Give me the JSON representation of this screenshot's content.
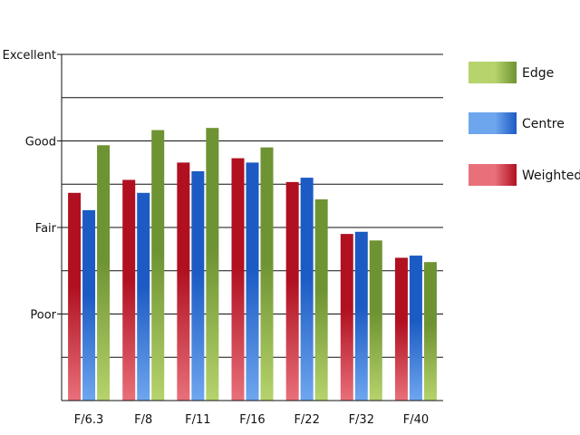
{
  "chart_data": {
    "type": "bar",
    "title": "",
    "xlabel": "",
    "ylabel": "",
    "categories": [
      "F/6.3",
      "F/8",
      "F/11",
      "F/16",
      "F/22",
      "F/32",
      "F/40"
    ],
    "ylim": [
      0,
      8
    ],
    "y_ticks": [
      {
        "value": 2,
        "label": "Poor"
      },
      {
        "value": 4,
        "label": "Fair"
      },
      {
        "value": 6,
        "label": "Good"
      },
      {
        "value": 8,
        "label": "Excellent"
      }
    ],
    "grid": true,
    "legend_position": "right",
    "series": [
      {
        "name": "Weighted",
        "values": [
          4.8,
          5.1,
          5.5,
          5.6,
          5.05,
          3.85,
          3.3
        ],
        "color_dark": "#b01020",
        "color_light": "#e8707a"
      },
      {
        "name": "Centre",
        "values": [
          4.4,
          4.8,
          5.3,
          5.5,
          5.15,
          3.9,
          3.35
        ],
        "color_dark": "#1c5bc4",
        "color_light": "#6ea6ee"
      },
      {
        "name": "Edge",
        "values": [
          5.9,
          6.25,
          6.3,
          5.85,
          4.65,
          3.7,
          3.2
        ],
        "color_dark": "#6e9332",
        "color_light": "#b6d36c"
      }
    ],
    "legend_order": [
      "Edge",
      "Centre",
      "Weighted"
    ]
  }
}
